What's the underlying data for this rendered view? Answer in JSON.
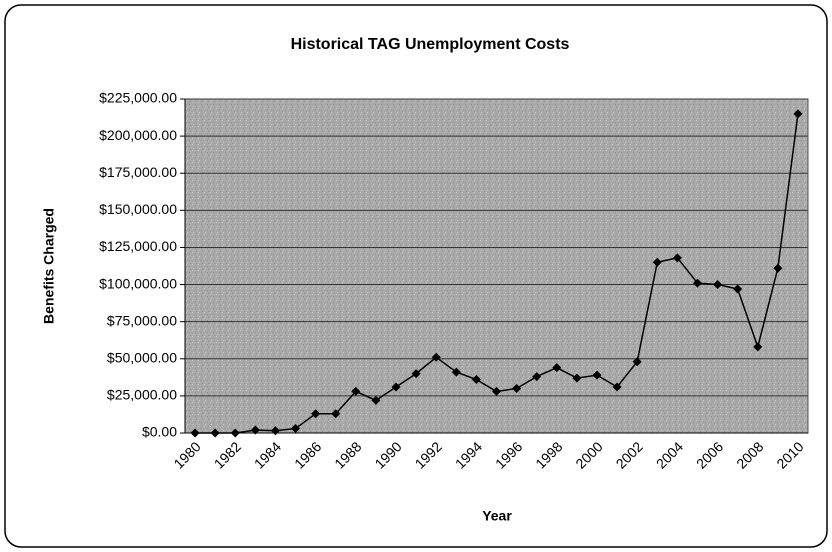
{
  "chart_data": {
    "type": "line",
    "title": "Historical TAG Unemployment Costs",
    "x_label": "Year",
    "y_label": "Benefits Charged",
    "categories": [
      "1980",
      null,
      "1982",
      null,
      "1984",
      null,
      "1986",
      null,
      "1988",
      null,
      "1990",
      null,
      "1992",
      null,
      "1994",
      null,
      "1996",
      null,
      "1998",
      null,
      "2000",
      null,
      "2002",
      null,
      "2004",
      null,
      "2006",
      null,
      "2008",
      null,
      "2010"
    ],
    "series": [
      {
        "name": "Benefits Charged",
        "color": "#000000",
        "values": [
          0,
          0,
          0,
          2000,
          1500,
          3000,
          13000,
          13000,
          28000,
          22000,
          31000,
          40000,
          51000,
          41000,
          36000,
          28000,
          30000,
          38000,
          44000,
          37000,
          39000,
          31000,
          48000,
          115000,
          118000,
          101000,
          100000,
          97000,
          58000,
          111000,
          215000
        ]
      }
    ],
    "ylim": [
      0,
      225000
    ],
    "yticks": [
      {
        "value": 0,
        "label": "$0.00"
      },
      {
        "value": 25000,
        "label": "$25,000.00"
      },
      {
        "value": 50000,
        "label": "$50,000.00"
      },
      {
        "value": 75000,
        "label": "$75,000.00"
      },
      {
        "value": 100000,
        "label": "$100,000.00"
      },
      {
        "value": 125000,
        "label": "$125,000.00"
      },
      {
        "value": 150000,
        "label": "$150,000.00"
      },
      {
        "value": 175000,
        "label": "$175,000.00"
      },
      {
        "value": 200000,
        "label": "$200,000.00"
      },
      {
        "value": 225000,
        "label": "$225,000.00"
      }
    ],
    "grid": true
  }
}
